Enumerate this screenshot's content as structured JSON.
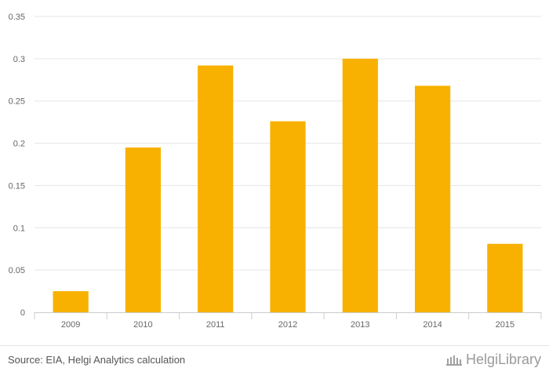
{
  "chart_data": {
    "type": "bar",
    "categories": [
      "2009",
      "2010",
      "2011",
      "2012",
      "2013",
      "2014",
      "2015"
    ],
    "values": [
      0.025,
      0.195,
      0.292,
      0.226,
      0.3,
      0.268,
      0.081
    ],
    "ylim": [
      0,
      0.35
    ],
    "yticks": [
      "0",
      "0.05",
      "0.1",
      "0.15",
      "0.2",
      "0.25",
      "0.3",
      "0.35"
    ],
    "grid": true,
    "colors": {
      "bar": "#f8b100",
      "grid": "#e6e6e6",
      "axis": "#cccccc",
      "tick_text": "#666666"
    }
  },
  "footer": {
    "source": "Source: EIA, Helgi Analytics calculation",
    "brand": "HelgiLibrary",
    "brand_icon": "library-logo-icon"
  }
}
